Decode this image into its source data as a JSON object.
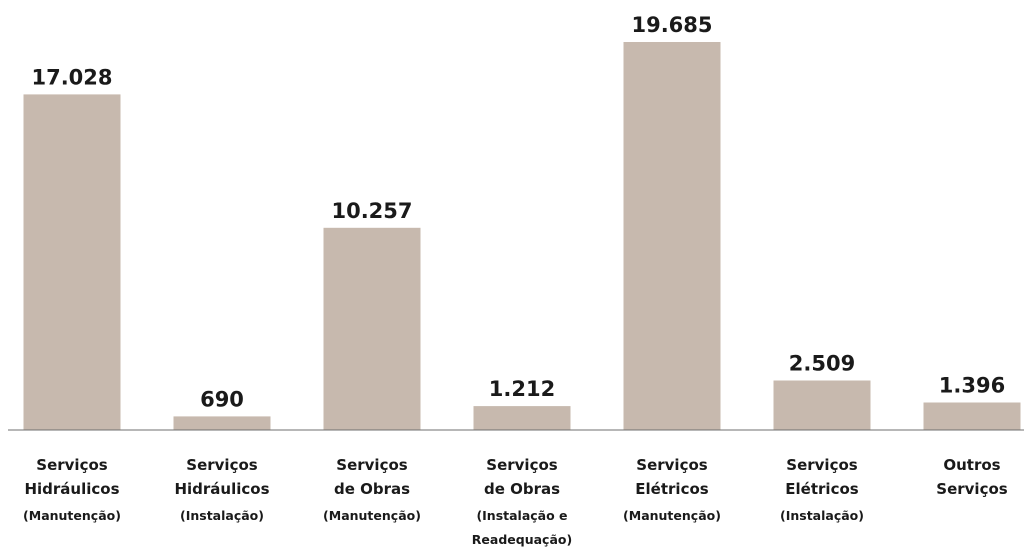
{
  "chart_data": {
    "type": "bar",
    "categories": [
      [
        "Serviços",
        "Hidráulicos",
        "(Manutenção)"
      ],
      [
        "Serviços",
        "Hidráulicos",
        "(Instalação)"
      ],
      [
        "Serviços",
        "de Obras",
        "(Manutenção)"
      ],
      [
        "Serviços",
        "de Obras",
        "(Instalação e",
        "Readequação)"
      ],
      [
        "Serviços",
        "Elétricos",
        "(Manutenção)"
      ],
      [
        "Serviços",
        "Elétricos",
        "(Instalação)"
      ],
      [
        "Outros",
        "Serviços"
      ]
    ],
    "values": [
      17028,
      690,
      10257,
      1212,
      19685,
      2509,
      1396
    ],
    "value_labels": [
      "17.028",
      "690",
      "10.257",
      "1.212",
      "19.685",
      "2.509",
      "1.396"
    ],
    "ylim": [
      0,
      19685
    ],
    "grid": false,
    "legend": "none",
    "colors": {
      "bar": "#c7b9ae",
      "baseline": "#6f6f6f",
      "text": "#1a1a1a"
    }
  }
}
